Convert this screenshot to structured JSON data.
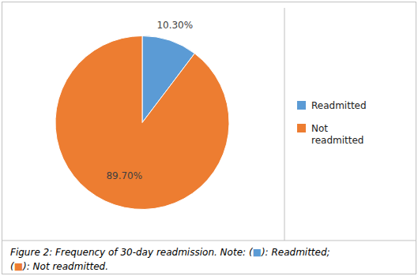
{
  "chart_data": {
    "type": "pie",
    "categories": [
      "Readmitted",
      "Not\nreadmitted"
    ],
    "values": [
      10.3,
      89.7
    ],
    "value_labels": [
      "10.30%",
      "89.70%"
    ],
    "colors": [
      "#5B9BD5",
      "#ED7D31"
    ],
    "data_labels": true,
    "legend": "right",
    "annotations": [
      "Figure 2:  Frequency of 30-day readmission. Note: (■): Readmitted;",
      "(■): Not readmitted."
    ]
  }
}
